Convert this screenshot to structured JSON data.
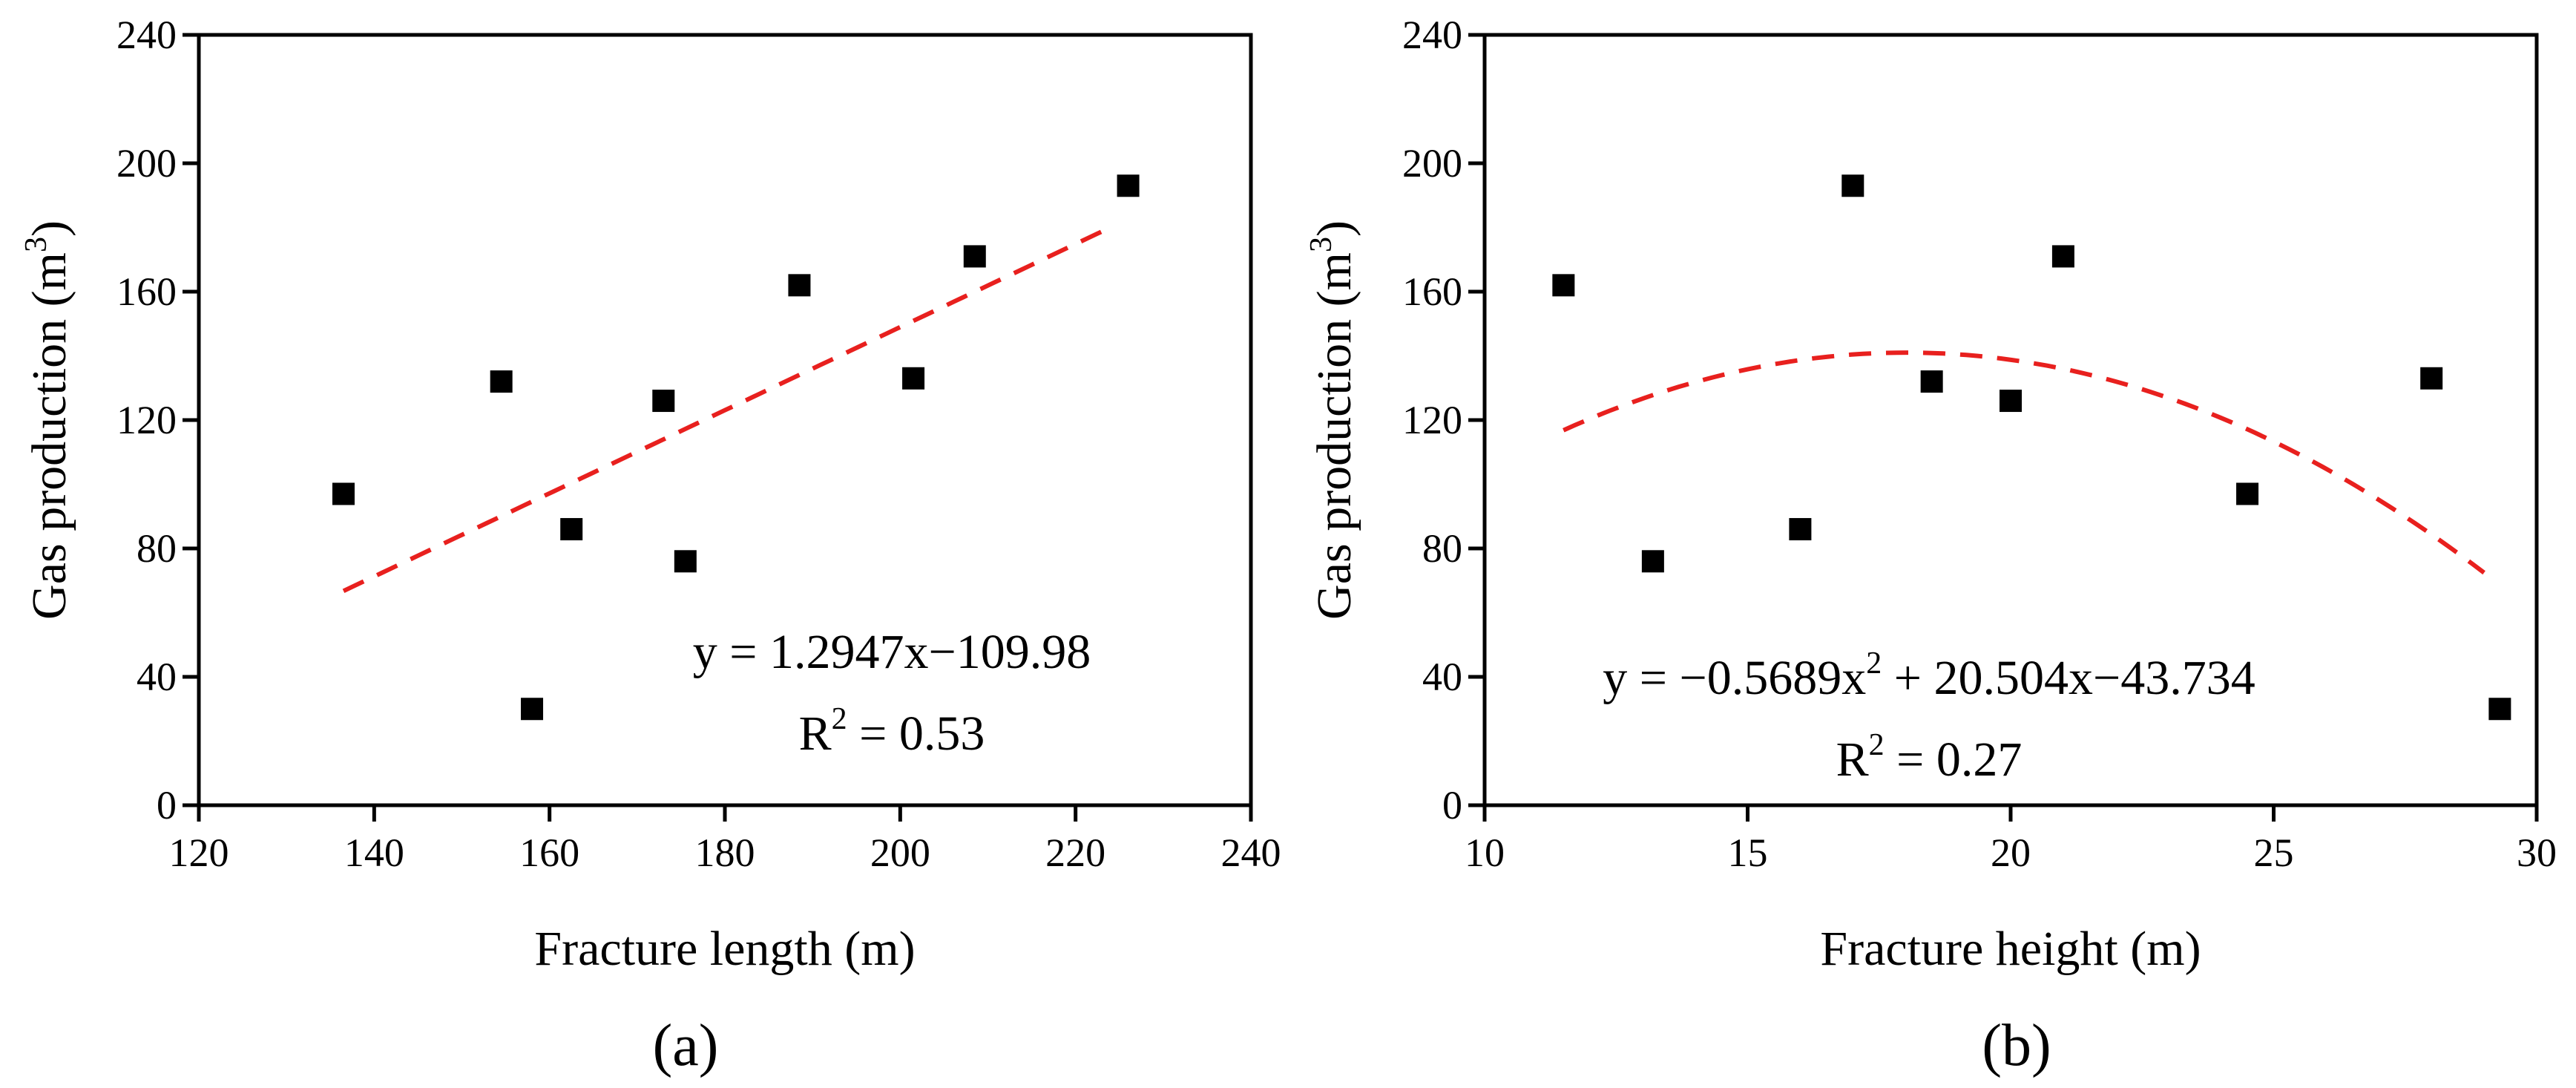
{
  "chart_data": [
    {
      "type": "scatter",
      "panel_label": "(a)",
      "xlabel": "Fracture length (m)",
      "ylabel_base": "Gas production (m",
      "ylabel_sup": "3",
      "ylabel_close": ")",
      "xlim": [
        120,
        240
      ],
      "ylim": [
        0,
        240
      ],
      "xticks": [
        "120",
        "140",
        "160",
        "180",
        "200",
        "220",
        "240"
      ],
      "yticks": [
        "0",
        "40",
        "80",
        "120",
        "160",
        "200",
        "240"
      ],
      "points": [
        {
          "x": 136.5,
          "y": 97
        },
        {
          "x": 154.5,
          "y": 132
        },
        {
          "x": 158.0,
          "y": 30
        },
        {
          "x": 162.5,
          "y": 86
        },
        {
          "x": 173.0,
          "y": 126
        },
        {
          "x": 175.5,
          "y": 76
        },
        {
          "x": 188.5,
          "y": 162
        },
        {
          "x": 201.5,
          "y": 133
        },
        {
          "x": 208.5,
          "y": 171
        },
        {
          "x": 226.0,
          "y": 193
        }
      ],
      "fit": {
        "kind": "linear",
        "a": 1.2947,
        "b": -109.98,
        "x_range": [
          136.5,
          223.5
        ],
        "color": "#e8201e"
      },
      "equation": {
        "line1": "y = 1.2947x−109.98",
        "line2_base": "R",
        "line2_sup": "2",
        "line2_rest": " = 0.53"
      },
      "marker_color": "#000000"
    },
    {
      "type": "scatter",
      "panel_label": "(b)",
      "xlabel": "Fracture height (m)",
      "ylabel_base": "Gas production (m",
      "ylabel_sup": "3",
      "ylabel_close": ")",
      "xlim": [
        10,
        30
      ],
      "ylim": [
        0,
        240
      ],
      "xticks": [
        "10",
        "15",
        "20",
        "25",
        "30"
      ],
      "yticks": [
        "0",
        "40",
        "80",
        "120",
        "160",
        "200",
        "240"
      ],
      "points": [
        {
          "x": 11.5,
          "y": 162
        },
        {
          "x": 13.2,
          "y": 76
        },
        {
          "x": 16.0,
          "y": 86
        },
        {
          "x": 17.0,
          "y": 193
        },
        {
          "x": 18.5,
          "y": 132
        },
        {
          "x": 20.0,
          "y": 126
        },
        {
          "x": 21.0,
          "y": 171
        },
        {
          "x": 24.5,
          "y": 97
        },
        {
          "x": 28.0,
          "y": 133
        },
        {
          "x": 29.3,
          "y": 30
        }
      ],
      "fit": {
        "kind": "quadratic",
        "a2": -0.5689,
        "a1": 20.504,
        "a0": -43.734,
        "x_range": [
          11.5,
          29.0
        ],
        "color": "#e8201e"
      },
      "equation": {
        "line1_a": "y = −0.5689x",
        "line1_sup": "2",
        "line1_b": " + 20.504x−43.734",
        "line2_base": "R",
        "line2_sup": "2",
        "line2_rest": " = 0.27"
      },
      "marker_color": "#000000"
    }
  ]
}
